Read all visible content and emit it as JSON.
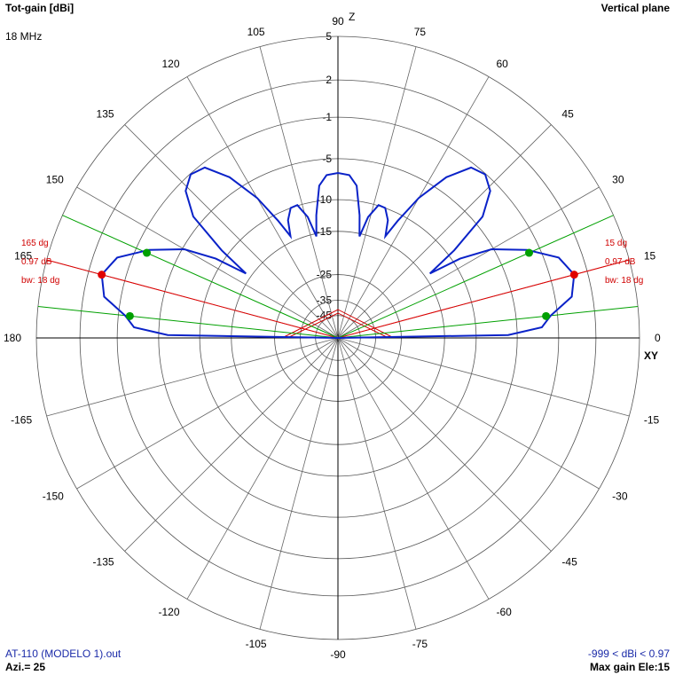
{
  "chart_data": {
    "type": "polar",
    "title": "Tot-gain [dBi]",
    "subtitle": "18 MHz",
    "plane": "Vertical plane",
    "axis_labels": {
      "vertical": "Z",
      "horizontal": "XY"
    },
    "footer": {
      "file": "AT-110 (MODELO 1).out",
      "azimuth": "Azi.= 25",
      "range": "-999 < dBi < 0.97",
      "max_gain": "Max gain Ele:15"
    },
    "rticks": [
      5,
      2,
      -1,
      -5,
      -10,
      -15,
      -25,
      -35,
      -45
    ],
    "thetaticks": [
      0,
      15,
      30,
      45,
      60,
      75,
      90,
      105,
      120,
      135,
      150,
      165,
      180,
      -165,
      -150,
      -135,
      -120,
      -105,
      -90,
      -75,
      -60,
      -45,
      -30,
      -15
    ],
    "color": "#0a22c8",
    "x": [
      0,
      1,
      3,
      6,
      10,
      15,
      20,
      25,
      30,
      33,
      35,
      37,
      40,
      44,
      48,
      52,
      56,
      60,
      63,
      65,
      67,
      70,
      73,
      76,
      78,
      80,
      83,
      86,
      90,
      94,
      97,
      100,
      102,
      104,
      107,
      110,
      113,
      115,
      117,
      120,
      124,
      128,
      132,
      136,
      140,
      143,
      145,
      147,
      150,
      155,
      160,
      165,
      170,
      174,
      177,
      179,
      180
    ],
    "values": [
      -999,
      -6,
      -2.5,
      -1.6,
      0.4,
      0.97,
      0.2,
      -2.1,
      -5.2,
      -9,
      -14,
      -9,
      -4,
      -1.8,
      -1.06,
      -1.4,
      -3.5,
      -7,
      -11,
      -14,
      -11.5,
      -10,
      -9.9,
      -12,
      -15.5,
      -12,
      -8,
      -6.8,
      -6.6,
      -6.8,
      -8,
      -12,
      -15.5,
      -12,
      -9.9,
      -10,
      -11.5,
      -14,
      -11,
      -7,
      -3.5,
      -1.4,
      -1.06,
      -1.8,
      -4,
      -9,
      -14,
      -9,
      -5.2,
      -2.1,
      0.2,
      0.97,
      0.4,
      -1.6,
      -2.5,
      -6,
      -999
    ],
    "markers": [
      {
        "elevation": 15,
        "gain": 0.97,
        "color": "#e00000"
      },
      {
        "elevation": 165,
        "gain": 0.97,
        "color": "#e00000"
      },
      {
        "elevation": 6,
        "gain": -2.03,
        "color": "#00a000"
      },
      {
        "elevation": 24,
        "gain": -2.03,
        "color": "#00a000"
      },
      {
        "elevation": 156,
        "gain": -2.03,
        "color": "#00a000"
      },
      {
        "elevation": 174,
        "gain": -2.03,
        "color": "#00a000"
      }
    ],
    "annotations": {
      "right": [
        "15 dg",
        "0.97 dB",
        "bw: 18 dg"
      ],
      "left": [
        "165 dg",
        "0.97 dB",
        "bw: 18 dg"
      ]
    }
  }
}
